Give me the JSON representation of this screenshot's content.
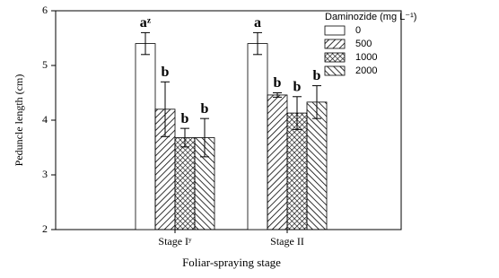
{
  "chart_data": {
    "type": "bar",
    "y_label": "Peduncle length (cm)",
    "x_label": "Foliar-spraying stage",
    "legend_title": "Daminozide (mg L⁻¹)",
    "categories": [
      "Stage Iʸ",
      "Stage II"
    ],
    "series": [
      {
        "name": "0",
        "hatch": "none",
        "color": "#000000",
        "values": [
          5.4,
          5.4
        ],
        "errors": [
          0.2,
          0.2
        ],
        "value_labels": [
          "aᶻ",
          "a"
        ]
      },
      {
        "name": "500",
        "hatch": "/",
        "color": "#000000",
        "values": [
          4.2,
          4.46
        ],
        "errors": [
          0.5,
          0.04
        ],
        "value_labels": [
          "b",
          "b"
        ]
      },
      {
        "name": "1000",
        "hatch": "x",
        "color": "#000000",
        "values": [
          3.68,
          4.13
        ],
        "errors": [
          0.17,
          0.3
        ],
        "value_labels": [
          "b",
          "b"
        ]
      },
      {
        "name": "2000",
        "hatch": "\\",
        "color": "#000000",
        "values": [
          3.68,
          4.33
        ],
        "errors": [
          0.35,
          0.3
        ],
        "value_labels": [
          "b",
          "b"
        ]
      }
    ],
    "ylim": [
      2,
      6
    ],
    "yticks": [
      2,
      3,
      4,
      5,
      6
    ],
    "legend": "upper right"
  }
}
